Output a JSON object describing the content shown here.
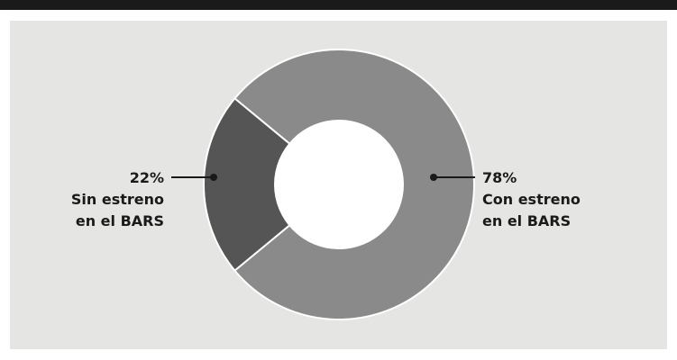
{
  "chart_data": {
    "type": "pie",
    "donut": true,
    "title": "",
    "slices": [
      {
        "label_pct": "78%",
        "label_lines": [
          "Con estreno",
          "en el BARS"
        ],
        "value": 78,
        "color": "#8a8a8a"
      },
      {
        "label_pct": "22%",
        "label_lines": [
          "Sin estreno",
          "en el BARS"
        ],
        "value": 22,
        "color": "#555555"
      }
    ],
    "legend": "none",
    "background": "#e5e5e3",
    "slice_border_color": "#ffffff",
    "callout_color": "#1a1a1a"
  }
}
